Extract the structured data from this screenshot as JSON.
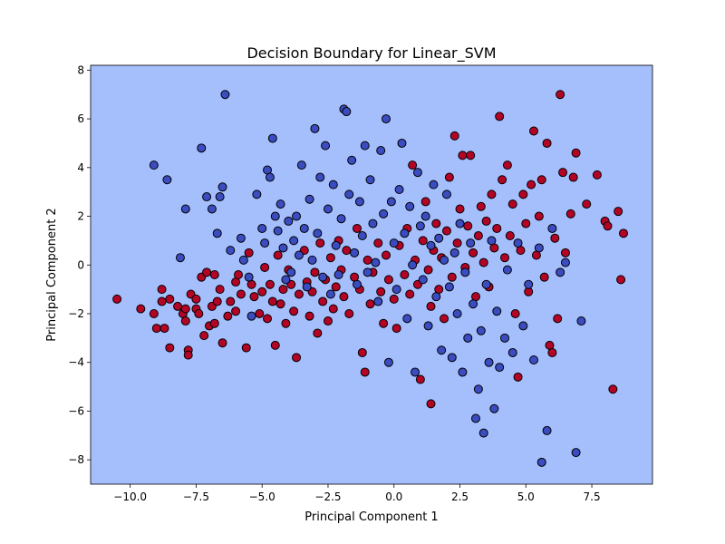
{
  "chart_data": {
    "type": "scatter",
    "title": "Decision Boundary for Linear_SVM",
    "xlabel": "Principal Component 1",
    "ylabel": "Principal Component 2",
    "xlim": [
      -11.5,
      9.8
    ],
    "ylim": [
      -9.0,
      8.2
    ],
    "xticks": [
      -10.0,
      -7.5,
      -5.0,
      -2.5,
      0.0,
      2.5,
      5.0,
      7.5
    ],
    "xtick_labels": [
      "−10.0",
      "−7.5",
      "−5.0",
      "−2.5",
      "0.0",
      "2.5",
      "5.0",
      "7.5"
    ],
    "yticks": [
      -8,
      -6,
      -4,
      -2,
      0,
      2,
      4,
      6,
      8
    ],
    "ytick_labels": [
      "−8",
      "−6",
      "−4",
      "−2",
      "0",
      "2",
      "4",
      "6",
      "8"
    ],
    "grid": false,
    "background_region_color": "#a5bffd",
    "marker_edge_color": "#000000",
    "series": [
      {
        "color": "#b40426",
        "points": [
          [
            -10.5,
            -1.4
          ],
          [
            -9.6,
            -1.8
          ],
          [
            -9.1,
            -2.0
          ],
          [
            -9.0,
            -2.6
          ],
          [
            -8.8,
            -1.0
          ],
          [
            -8.8,
            -1.5
          ],
          [
            -8.7,
            -2.6
          ],
          [
            -8.5,
            -3.4
          ],
          [
            -8.5,
            -1.4
          ],
          [
            -8.2,
            -1.7
          ],
          [
            -8.0,
            -2.0
          ],
          [
            -7.9,
            -1.8
          ],
          [
            -7.9,
            -2.3
          ],
          [
            -7.8,
            -3.5
          ],
          [
            -7.8,
            -3.7
          ],
          [
            -7.7,
            -1.2
          ],
          [
            -7.5,
            -1.4
          ],
          [
            -7.5,
            -1.8
          ],
          [
            -7.4,
            -2.0
          ],
          [
            -7.3,
            -0.5
          ],
          [
            -7.2,
            -2.9
          ],
          [
            -7.1,
            -0.3
          ],
          [
            -7.0,
            -2.5
          ],
          [
            -6.9,
            -1.7
          ],
          [
            -6.8,
            -2.4
          ],
          [
            -6.8,
            -0.4
          ],
          [
            -6.7,
            -1.5
          ],
          [
            -6.6,
            -1.0
          ],
          [
            -6.5,
            -3.2
          ],
          [
            -6.3,
            -2.1
          ],
          [
            -6.2,
            -1.5
          ],
          [
            -6.0,
            -0.7
          ],
          [
            -6.0,
            -1.9
          ],
          [
            -5.9,
            -0.4
          ],
          [
            -5.8,
            -1.2
          ],
          [
            -5.6,
            -3.4
          ],
          [
            -5.5,
            0.5
          ],
          [
            -5.4,
            -0.8
          ],
          [
            -5.3,
            -1.3
          ],
          [
            -5.1,
            -2.0
          ],
          [
            -5.0,
            -1.1
          ],
          [
            -4.9,
            -0.1
          ],
          [
            -4.8,
            -2.2
          ],
          [
            -4.7,
            -0.8
          ],
          [
            -4.6,
            -1.5
          ],
          [
            -4.5,
            -3.3
          ],
          [
            -4.4,
            0.4
          ],
          [
            -4.3,
            -1.6
          ],
          [
            -4.2,
            -1.0
          ],
          [
            -4.1,
            -2.4
          ],
          [
            -4.0,
            -0.2
          ],
          [
            -3.9,
            -0.8
          ],
          [
            -3.8,
            -1.9
          ],
          [
            -3.7,
            -3.8
          ],
          [
            -3.6,
            -1.2
          ],
          [
            -3.4,
            0.6
          ],
          [
            -3.3,
            -0.7
          ],
          [
            -3.2,
            -2.1
          ],
          [
            -3.1,
            -1.1
          ],
          [
            -3.0,
            -0.3
          ],
          [
            -2.9,
            -2.8
          ],
          [
            -2.8,
            0.9
          ],
          [
            -2.7,
            -1.5
          ],
          [
            -2.6,
            -0.6
          ],
          [
            -2.5,
            -2.3
          ],
          [
            -2.4,
            0.3
          ],
          [
            -2.3,
            -1.8
          ],
          [
            -2.2,
            -0.9
          ],
          [
            -2.1,
            1.0
          ],
          [
            -2.0,
            -0.2
          ],
          [
            -1.9,
            -1.3
          ],
          [
            -1.8,
            0.6
          ],
          [
            -1.7,
            -2.0
          ],
          [
            -1.5,
            -0.5
          ],
          [
            -1.4,
            1.5
          ],
          [
            -1.3,
            -1.0
          ],
          [
            -1.2,
            -3.6
          ],
          [
            -1.1,
            -4.4
          ],
          [
            -1.0,
            0.2
          ],
          [
            -0.9,
            -1.6
          ],
          [
            -0.8,
            -0.3
          ],
          [
            -0.6,
            0.9
          ],
          [
            -0.5,
            -1.1
          ],
          [
            -0.4,
            -2.4
          ],
          [
            -0.3,
            0.4
          ],
          [
            -0.2,
            -0.6
          ],
          [
            0.0,
            -1.4
          ],
          [
            0.1,
            -2.6
          ],
          [
            0.2,
            0.8
          ],
          [
            0.4,
            -0.4
          ],
          [
            0.5,
            1.5
          ],
          [
            0.6,
            -1.2
          ],
          [
            0.7,
            4.1
          ],
          [
            0.8,
            0.2
          ],
          [
            0.9,
            -0.8
          ],
          [
            1.0,
            -4.7
          ],
          [
            1.1,
            1.0
          ],
          [
            1.2,
            2.6
          ],
          [
            1.3,
            -0.2
          ],
          [
            1.4,
            -1.7
          ],
          [
            1.4,
            -5.7
          ],
          [
            1.5,
            0.6
          ],
          [
            1.6,
            1.7
          ],
          [
            1.7,
            -1.0
          ],
          [
            1.8,
            0.3
          ],
          [
            1.9,
            -2.2
          ],
          [
            2.0,
            1.4
          ],
          [
            2.1,
            3.6
          ],
          [
            2.2,
            -0.5
          ],
          [
            2.3,
            5.3
          ],
          [
            2.4,
            0.9
          ],
          [
            2.5,
            2.3
          ],
          [
            2.6,
            4.5
          ],
          [
            2.7,
            -0.1
          ],
          [
            2.8,
            1.6
          ],
          [
            2.9,
            4.5
          ],
          [
            3.0,
            0.5
          ],
          [
            3.1,
            -1.3
          ],
          [
            3.2,
            1.2
          ],
          [
            3.3,
            2.4
          ],
          [
            3.4,
            0.1
          ],
          [
            3.5,
            1.8
          ],
          [
            3.6,
            -0.9
          ],
          [
            3.7,
            2.9
          ],
          [
            3.8,
            0.7
          ],
          [
            3.9,
            1.5
          ],
          [
            4.0,
            6.1
          ],
          [
            4.1,
            3.5
          ],
          [
            4.2,
            0.3
          ],
          [
            4.3,
            4.1
          ],
          [
            4.4,
            1.2
          ],
          [
            4.5,
            2.5
          ],
          [
            4.6,
            -2.0
          ],
          [
            4.7,
            -4.6
          ],
          [
            4.8,
            0.6
          ],
          [
            4.9,
            2.9
          ],
          [
            5.0,
            1.7
          ],
          [
            5.1,
            -1.1
          ],
          [
            5.2,
            3.3
          ],
          [
            5.3,
            5.5
          ],
          [
            5.4,
            0.4
          ],
          [
            5.5,
            2.0
          ],
          [
            5.6,
            3.5
          ],
          [
            5.7,
            -0.5
          ],
          [
            5.8,
            5.0
          ],
          [
            5.9,
            -3.3
          ],
          [
            6.0,
            -3.6
          ],
          [
            6.1,
            1.1
          ],
          [
            6.2,
            -2.2
          ],
          [
            6.3,
            7.0
          ],
          [
            6.4,
            3.8
          ],
          [
            6.5,
            0.5
          ],
          [
            6.7,
            2.1
          ],
          [
            6.8,
            3.6
          ],
          [
            6.9,
            4.6
          ],
          [
            7.3,
            2.5
          ],
          [
            7.7,
            3.7
          ],
          [
            8.0,
            1.8
          ],
          [
            8.1,
            1.6
          ],
          [
            8.3,
            -5.1
          ],
          [
            8.5,
            2.2
          ],
          [
            8.6,
            -0.6
          ],
          [
            8.7,
            1.3
          ]
        ]
      },
      {
        "color": "#3b4cc0",
        "points": [
          [
            -9.1,
            4.1
          ],
          [
            -8.6,
            3.5
          ],
          [
            -8.1,
            0.3
          ],
          [
            -7.9,
            2.3
          ],
          [
            -7.3,
            4.8
          ],
          [
            -7.1,
            2.8
          ],
          [
            -6.9,
            2.3
          ],
          [
            -6.7,
            1.3
          ],
          [
            -6.6,
            2.8
          ],
          [
            -6.5,
            3.2
          ],
          [
            -6.4,
            7.0
          ],
          [
            -6.2,
            0.6
          ],
          [
            -5.8,
            1.1
          ],
          [
            -5.7,
            0.2
          ],
          [
            -5.5,
            -0.5
          ],
          [
            -5.4,
            -2.1
          ],
          [
            -5.2,
            2.9
          ],
          [
            -5.0,
            1.5
          ],
          [
            -4.9,
            0.9
          ],
          [
            -4.8,
            3.9
          ],
          [
            -4.7,
            3.6
          ],
          [
            -4.6,
            5.2
          ],
          [
            -4.5,
            2.0
          ],
          [
            -4.4,
            1.4
          ],
          [
            -4.3,
            2.5
          ],
          [
            -4.2,
            0.7
          ],
          [
            -4.1,
            -0.6
          ],
          [
            -4.0,
            1.8
          ],
          [
            -3.9,
            -0.3
          ],
          [
            -3.8,
            1.0
          ],
          [
            -3.7,
            2.0
          ],
          [
            -3.6,
            0.4
          ],
          [
            -3.5,
            4.1
          ],
          [
            -3.4,
            1.5
          ],
          [
            -3.3,
            -0.9
          ],
          [
            -3.2,
            2.7
          ],
          [
            -3.1,
            0.2
          ],
          [
            -3.0,
            5.6
          ],
          [
            -2.9,
            1.3
          ],
          [
            -2.8,
            3.6
          ],
          [
            -2.7,
            -0.5
          ],
          [
            -2.6,
            4.9
          ],
          [
            -2.5,
            2.3
          ],
          [
            -2.4,
            -1.2
          ],
          [
            -2.3,
            3.3
          ],
          [
            -2.2,
            0.8
          ],
          [
            -2.1,
            -0.4
          ],
          [
            -2.0,
            1.9
          ],
          [
            -1.9,
            6.4
          ],
          [
            -1.8,
            6.3
          ],
          [
            -1.7,
            2.9
          ],
          [
            -1.6,
            4.3
          ],
          [
            -1.5,
            0.5
          ],
          [
            -1.4,
            -0.8
          ],
          [
            -1.3,
            2.6
          ],
          [
            -1.2,
            1.2
          ],
          [
            -1.1,
            4.9
          ],
          [
            -1.0,
            -0.3
          ],
          [
            -0.9,
            3.5
          ],
          [
            -0.8,
            1.7
          ],
          [
            -0.7,
            0.1
          ],
          [
            -0.6,
            -1.5
          ],
          [
            -0.5,
            4.7
          ],
          [
            -0.4,
            2.1
          ],
          [
            -0.3,
            6.0
          ],
          [
            -0.2,
            -4.0
          ],
          [
            -0.1,
            2.6
          ],
          [
            0.0,
            0.9
          ],
          [
            0.1,
            -1.0
          ],
          [
            0.2,
            3.1
          ],
          [
            0.3,
            5.0
          ],
          [
            0.4,
            1.3
          ],
          [
            0.5,
            -2.2
          ],
          [
            0.6,
            2.4
          ],
          [
            0.7,
            0.0
          ],
          [
            0.8,
            -4.4
          ],
          [
            0.9,
            3.8
          ],
          [
            1.0,
            1.6
          ],
          [
            1.1,
            -0.6
          ],
          [
            1.2,
            2.0
          ],
          [
            1.3,
            -2.5
          ],
          [
            1.4,
            0.8
          ],
          [
            1.5,
            3.3
          ],
          [
            1.6,
            -1.3
          ],
          [
            1.7,
            1.1
          ],
          [
            1.8,
            -3.5
          ],
          [
            1.9,
            0.2
          ],
          [
            2.0,
            2.9
          ],
          [
            2.1,
            -0.9
          ],
          [
            2.2,
            -3.8
          ],
          [
            2.3,
            0.5
          ],
          [
            2.4,
            -2.0
          ],
          [
            2.5,
            1.7
          ],
          [
            2.6,
            -4.4
          ],
          [
            2.7,
            -0.3
          ],
          [
            2.8,
            -3.0
          ],
          [
            2.9,
            0.9
          ],
          [
            3.0,
            -1.6
          ],
          [
            3.1,
            -6.3
          ],
          [
            3.2,
            -5.1
          ],
          [
            3.3,
            -2.7
          ],
          [
            3.4,
            -6.9
          ],
          [
            3.5,
            -0.8
          ],
          [
            3.6,
            -4.0
          ],
          [
            3.7,
            1.0
          ],
          [
            3.8,
            -5.9
          ],
          [
            3.9,
            -1.9
          ],
          [
            4.0,
            -4.2
          ],
          [
            4.2,
            -3.0
          ],
          [
            4.3,
            -0.2
          ],
          [
            4.5,
            -3.6
          ],
          [
            4.7,
            0.9
          ],
          [
            4.9,
            -2.5
          ],
          [
            5.1,
            -0.8
          ],
          [
            5.3,
            -3.9
          ],
          [
            5.5,
            0.7
          ],
          [
            5.6,
            -8.1
          ],
          [
            5.8,
            -6.8
          ],
          [
            6.0,
            1.5
          ],
          [
            6.3,
            -0.3
          ],
          [
            6.5,
            0.1
          ],
          [
            6.9,
            -7.7
          ],
          [
            7.1,
            -2.3
          ]
        ]
      }
    ]
  }
}
